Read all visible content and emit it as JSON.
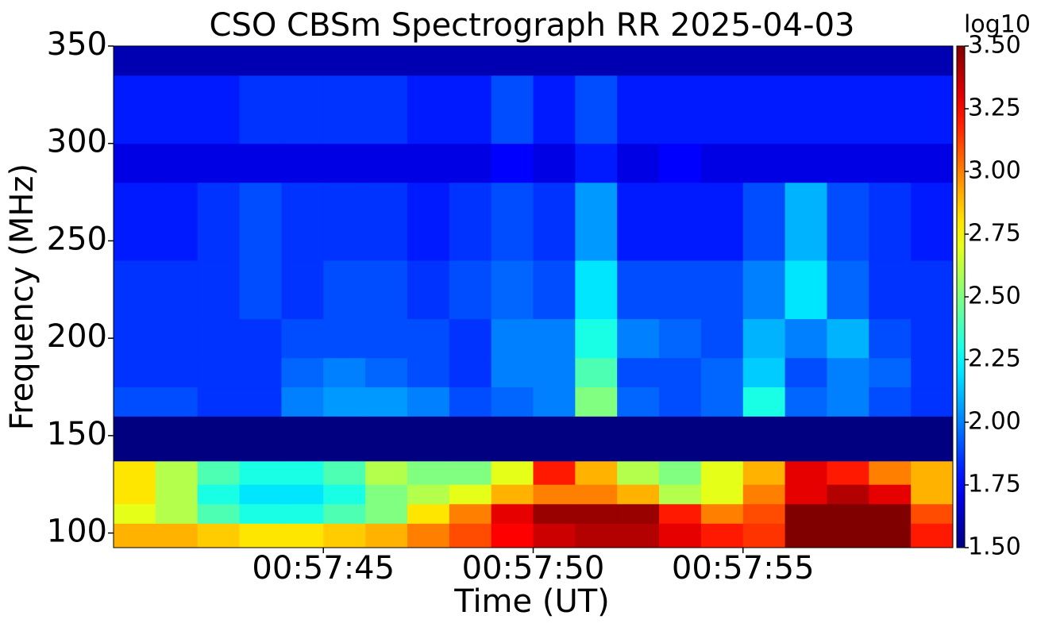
{
  "chart_data": {
    "type": "spectrogram",
    "title": "CSO CBSm Spectrograph RR 2025-04-03",
    "xlabel": "Time (UT)",
    "ylabel": "Frequency (MHz)",
    "colorbar_label": "log10",
    "colormap": "jet",
    "xlim": [
      "00:57:40",
      "00:58:00"
    ],
    "xticks": [
      "00:57:45",
      "00:57:50",
      "00:57:55"
    ],
    "ylim": [
      92.5,
      350
    ],
    "yticks": [
      100,
      150,
      200,
      250,
      300,
      350
    ],
    "zlim": [
      1.5,
      3.5
    ],
    "zticks": [
      {
        "value": 1.5,
        "label": "1.50"
      },
      {
        "value": 1.75,
        "label": "1.75"
      },
      {
        "value": 2.0,
        "label": "2.00"
      },
      {
        "value": 2.25,
        "label": "2.25"
      },
      {
        "value": 2.5,
        "label": "2.50"
      },
      {
        "value": 2.75,
        "label": "2.75"
      },
      {
        "value": 3.0,
        "label": "3.00"
      },
      {
        "value": 3.25,
        "label": "3.25"
      },
      {
        "value": 3.5,
        "label": "3.50"
      }
    ],
    "xbins": [
      "00:57:40",
      "00:57:41",
      "00:57:42",
      "00:57:43",
      "00:57:44",
      "00:57:45",
      "00:57:46",
      "00:57:47",
      "00:57:48",
      "00:57:49",
      "00:57:50",
      "00:57:51",
      "00:57:52",
      "00:57:53",
      "00:57:54",
      "00:57:55",
      "00:57:56",
      "00:57:57",
      "00:57:58",
      "00:57:59",
      "00:58:00"
    ],
    "ybins": [
      92.5,
      105,
      115,
      125,
      137,
      160,
      175,
      190,
      210,
      240,
      280,
      300,
      335,
      350
    ],
    "z": [
      [
        2.9,
        2.9,
        2.85,
        2.8,
        2.8,
        2.85,
        2.9,
        3.0,
        3.1,
        3.25,
        3.35,
        3.4,
        3.4,
        3.3,
        3.2,
        3.15,
        3.5,
        3.5,
        3.5,
        3.2
      ],
      [
        2.7,
        2.6,
        2.4,
        2.3,
        2.3,
        2.4,
        2.5,
        2.8,
        3.0,
        3.3,
        3.45,
        3.45,
        3.45,
        3.2,
        3.0,
        3.1,
        3.5,
        3.5,
        3.5,
        3.1
      ],
      [
        2.8,
        2.6,
        2.3,
        2.2,
        2.2,
        2.3,
        2.5,
        2.6,
        2.7,
        2.9,
        3.0,
        3.0,
        2.9,
        2.6,
        2.7,
        3.0,
        3.3,
        3.4,
        3.3,
        2.9
      ],
      [
        2.8,
        2.6,
        2.4,
        2.3,
        2.3,
        2.4,
        2.6,
        2.5,
        2.5,
        2.7,
        3.2,
        2.9,
        2.6,
        2.5,
        2.7,
        2.9,
        3.3,
        3.2,
        3.0,
        2.9
      ],
      [
        1.5,
        1.5,
        1.5,
        1.5,
        1.5,
        1.5,
        1.5,
        1.5,
        1.5,
        1.5,
        1.5,
        1.5,
        1.5,
        1.5,
        1.5,
        1.5,
        1.5,
        1.5,
        1.5,
        1.5
      ],
      [
        1.9,
        1.9,
        1.85,
        1.85,
        2.0,
        2.05,
        2.05,
        2.0,
        1.9,
        1.95,
        2.0,
        2.5,
        1.95,
        1.9,
        1.95,
        2.3,
        1.95,
        2.0,
        1.9,
        1.85
      ],
      [
        1.85,
        1.85,
        1.85,
        1.85,
        1.95,
        2.0,
        1.95,
        1.9,
        1.85,
        2.0,
        2.0,
        2.4,
        1.9,
        1.9,
        1.95,
        2.15,
        1.9,
        2.0,
        1.95,
        1.85
      ],
      [
        1.85,
        1.85,
        1.85,
        1.85,
        1.9,
        1.9,
        1.9,
        1.9,
        1.85,
        2.0,
        2.0,
        2.3,
        2.0,
        1.95,
        1.9,
        2.1,
        2.0,
        2.1,
        1.9,
        1.85
      ],
      [
        1.85,
        1.85,
        1.85,
        1.9,
        1.85,
        1.9,
        1.9,
        1.85,
        1.9,
        1.95,
        1.9,
        2.2,
        1.9,
        1.9,
        1.9,
        2.0,
        2.2,
        1.95,
        1.85,
        1.85
      ],
      [
        1.8,
        1.8,
        1.85,
        1.9,
        1.85,
        1.85,
        1.85,
        1.8,
        1.85,
        1.9,
        1.85,
        2.05,
        1.8,
        1.8,
        1.8,
        1.9,
        2.1,
        1.9,
        1.85,
        1.8
      ],
      [
        1.7,
        1.7,
        1.7,
        1.7,
        1.7,
        1.7,
        1.7,
        1.7,
        1.7,
        1.75,
        1.7,
        1.8,
        1.7,
        1.75,
        1.7,
        1.7,
        1.7,
        1.7,
        1.7,
        1.7
      ],
      [
        1.8,
        1.8,
        1.8,
        1.85,
        1.85,
        1.85,
        1.85,
        1.8,
        1.8,
        1.9,
        1.8,
        1.9,
        1.8,
        1.8,
        1.8,
        1.8,
        1.8,
        1.8,
        1.8,
        1.8
      ],
      [
        1.6,
        1.6,
        1.6,
        1.6,
        1.6,
        1.6,
        1.6,
        1.6,
        1.6,
        1.6,
        1.6,
        1.6,
        1.6,
        1.6,
        1.6,
        1.6,
        1.6,
        1.6,
        1.6,
        1.6
      ]
    ]
  }
}
